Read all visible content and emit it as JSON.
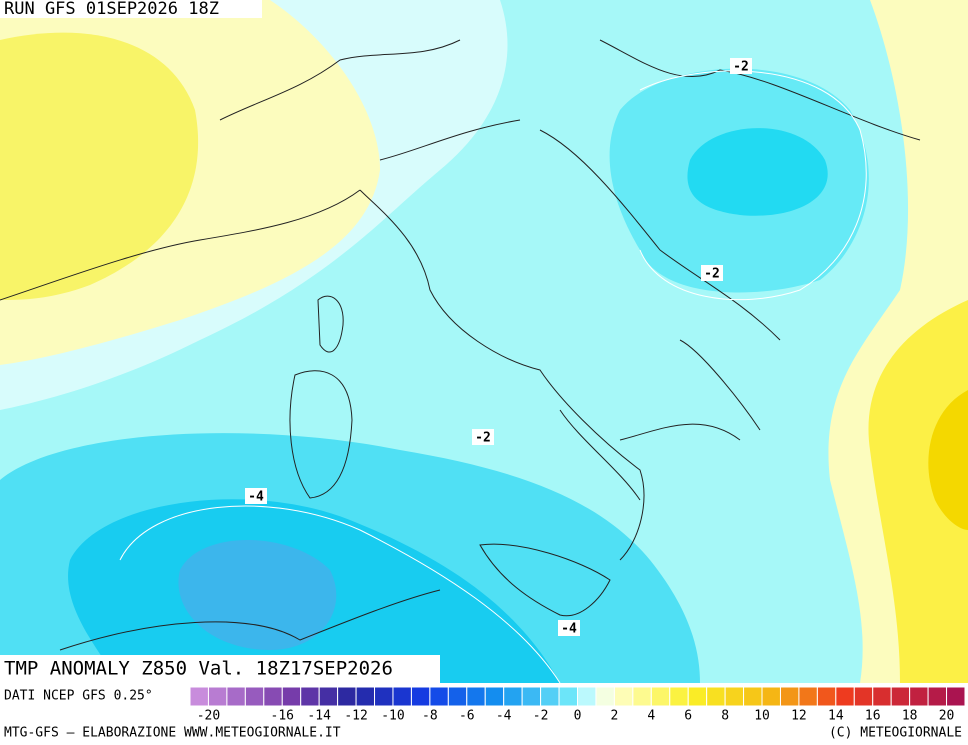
{
  "header": {
    "run": "RUN GFS 01SEP2026 18Z"
  },
  "contour_labels": [
    "-2",
    "-2",
    "-2",
    "-4",
    "-4"
  ],
  "title": "TMP ANOMALY Z850 Val. 18Z17SEP2026",
  "source": "DATI NCEP GFS 0.25°",
  "colorbar": {
    "ticks": [
      -20,
      -16,
      -14,
      -12,
      -10,
      -8,
      -6,
      -4,
      -2,
      0,
      2,
      4,
      6,
      8,
      10,
      12,
      14,
      16,
      18,
      20
    ]
  },
  "footer": {
    "left": "MTG-GFS — ELABORAZIONE WWW.METEOGIORNALE.IT",
    "right": "(C) METEOGIORNALE"
  }
}
